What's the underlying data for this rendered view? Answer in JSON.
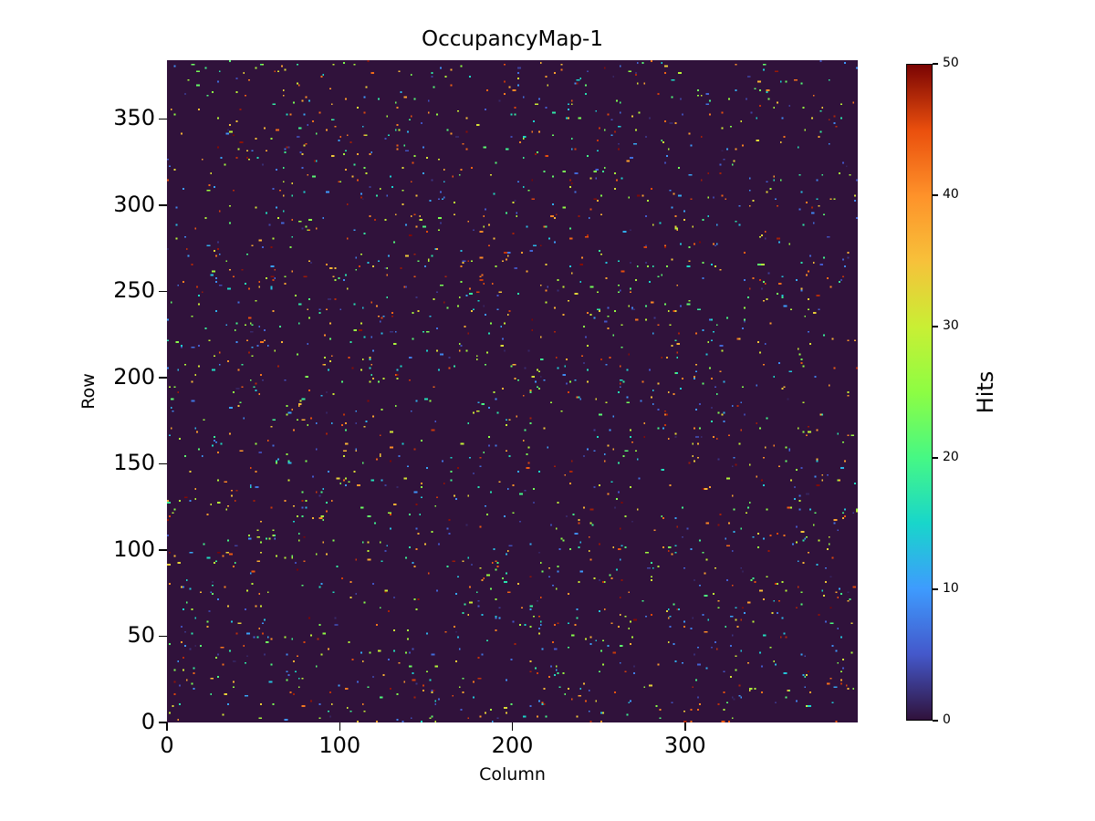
{
  "chart_data": {
    "type": "heatmap",
    "title": "OccupancyMap-1",
    "xlabel": "Column",
    "ylabel": "Row",
    "grid": {
      "ncols": 400,
      "nrows": 384
    },
    "x_range": [
      0,
      400
    ],
    "y_range": [
      0,
      384
    ],
    "x_ticks": [
      0,
      100,
      200,
      300
    ],
    "y_ticks": [
      0,
      50,
      100,
      150,
      200,
      250,
      300,
      350
    ],
    "colorbar": {
      "label": "Hits",
      "vmin": 0,
      "vmax": 50,
      "ticks": [
        0,
        10,
        20,
        30,
        40,
        50
      ],
      "tick_side": "right",
      "orientation": "vertical"
    },
    "colormap": {
      "name": "turbo",
      "stops": [
        "#30123b",
        "#4458cb",
        "#3e9bfe",
        "#18d6cb",
        "#46f884",
        "#8dfd43",
        "#c9ef34",
        "#f7c13a",
        "#fe922a",
        "#ea4f0d",
        "#7a0403"
      ]
    },
    "zero_value_color": "#30123b",
    "occupancy": {
      "pattern": "sparse-random-hits",
      "fill_fraction": 0.015,
      "hit_value_min": 1,
      "hit_value_max": 50,
      "seed": 7
    },
    "legend": "none",
    "grid_lines": false
  }
}
